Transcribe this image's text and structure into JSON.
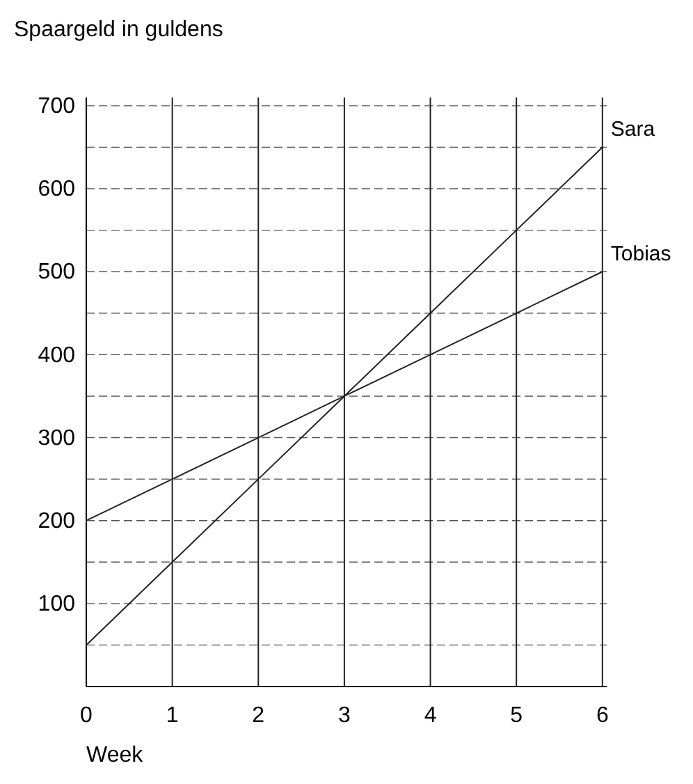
{
  "chart_data": {
    "type": "line",
    "ylabel": "Spaargeld in guldens",
    "xlabel": "Week",
    "x": [
      0,
      1,
      2,
      3,
      4,
      5,
      6
    ],
    "series": [
      {
        "name": "Sara",
        "color": "#222222",
        "values": [
          50,
          150,
          250,
          350,
          450,
          550,
          650
        ]
      },
      {
        "name": "Tobias",
        "color": "#222222",
        "values": [
          200,
          250,
          300,
          350,
          400,
          450,
          500
        ]
      }
    ],
    "xlim": [
      0,
      6.05
    ],
    "xticks": [
      0,
      1,
      2,
      3,
      4,
      5,
      6
    ],
    "ylim": [
      0,
      710
    ],
    "yticks": [
      {
        "value": 50,
        "label": null
      },
      100,
      {
        "value": 150,
        "label": null
      },
      200,
      {
        "value": 250,
        "label": null
      },
      300,
      {
        "value": 350,
        "label": null
      },
      400,
      {
        "value": 450,
        "label": null
      },
      500,
      {
        "value": 550,
        "label": null
      },
      600,
      {
        "value": 650,
        "label": null
      },
      700
    ],
    "grid": true,
    "legend": false,
    "marker": "none",
    "line_style": "solid"
  }
}
